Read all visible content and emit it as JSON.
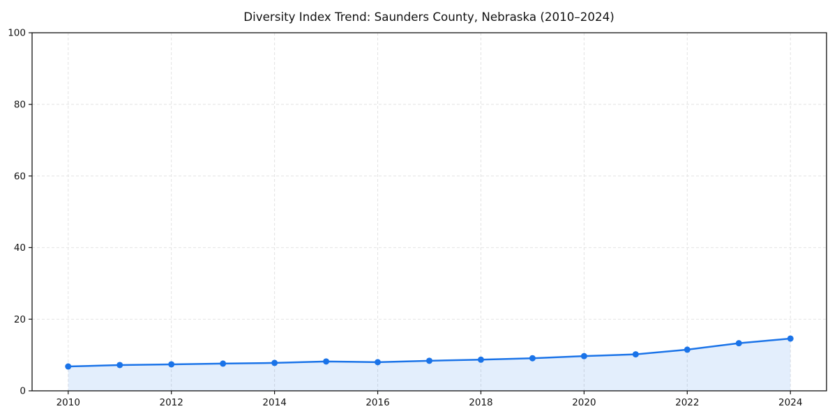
{
  "chart_data": {
    "type": "line",
    "title": "Diversity Index Trend: Saunders County, Nebraska (2010–2024)",
    "xlabel": "",
    "ylabel": "",
    "x": [
      2010,
      2011,
      2012,
      2013,
      2014,
      2015,
      2016,
      2017,
      2018,
      2019,
      2020,
      2021,
      2022,
      2023,
      2024
    ],
    "series": [
      {
        "name": "Diversity Index",
        "values": [
          6.8,
          7.2,
          7.4,
          7.6,
          7.8,
          8.2,
          8.0,
          8.4,
          8.7,
          9.1,
          9.7,
          10.2,
          11.5,
          13.3,
          14.6
        ]
      }
    ],
    "xlim": [
      2009.3,
      2024.7
    ],
    "ylim": [
      0,
      100
    ],
    "xticks": [
      2010,
      2012,
      2014,
      2016,
      2018,
      2020,
      2022,
      2024
    ],
    "yticks": [
      0,
      20,
      40,
      60,
      80,
      100
    ],
    "grid": "dashed-both-axes",
    "legend": "none",
    "marker": "circle",
    "area_fill": true,
    "colors": {
      "line": "#1a73e8",
      "marker": "#1a73e8",
      "fill": "#1a73e8",
      "fill_opacity": 0.12,
      "grid": "#e2e2e2",
      "spine": "#111111",
      "text": "#111111"
    }
  }
}
